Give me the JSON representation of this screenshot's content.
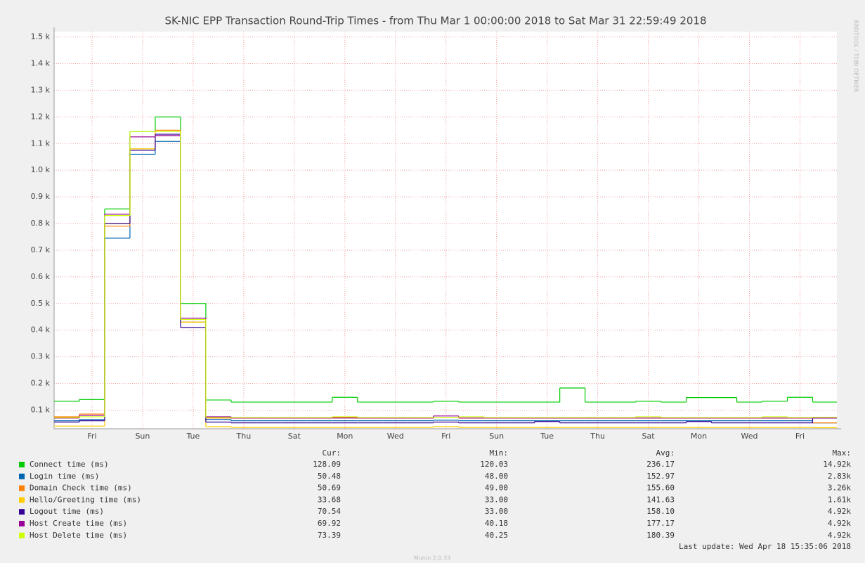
{
  "chart_data": {
    "type": "line",
    "title": "SK-NIC EPP Transaction Round-Trip Times - from Thu Mar  1 00:00:00 2018 to Sat Mar 31 22:59:49 2018",
    "side_label": "RRDTOOL / TOBI OETIKER",
    "step": true,
    "grid": true,
    "xlim": [
      0,
      30.96
    ],
    "ylim": [
      30,
      1520
    ],
    "xticks": [
      {
        "value": 1.5,
        "label": "Fri"
      },
      {
        "value": 3.5,
        "label": "Sun"
      },
      {
        "value": 5.5,
        "label": "Tue"
      },
      {
        "value": 7.5,
        "label": "Thu"
      },
      {
        "value": 9.5,
        "label": "Sat"
      },
      {
        "value": 11.5,
        "label": "Mon"
      },
      {
        "value": 13.5,
        "label": "Wed"
      },
      {
        "value": 15.5,
        "label": "Fri"
      },
      {
        "value": 17.5,
        "label": "Sun"
      },
      {
        "value": 19.5,
        "label": "Tue"
      },
      {
        "value": 21.5,
        "label": "Thu"
      },
      {
        "value": 23.5,
        "label": "Sat"
      },
      {
        "value": 25.5,
        "label": "Mon"
      },
      {
        "value": 27.5,
        "label": "Wed"
      },
      {
        "value": 29.5,
        "label": "Fri"
      }
    ],
    "yticks": [
      {
        "value": 100,
        "label": "0.1 k"
      },
      {
        "value": 200,
        "label": "0.2 k"
      },
      {
        "value": 300,
        "label": "0.3 k"
      },
      {
        "value": 400,
        "label": "0.4 k"
      },
      {
        "value": 500,
        "label": "0.5 k"
      },
      {
        "value": 600,
        "label": "0.6 k"
      },
      {
        "value": 700,
        "label": "0.7 k"
      },
      {
        "value": 800,
        "label": "0.8 k"
      },
      {
        "value": 900,
        "label": "0.9 k"
      },
      {
        "value": 1000,
        "label": "1.0 k"
      },
      {
        "value": 1100,
        "label": "1.1 k"
      },
      {
        "value": 1200,
        "label": "1.2 k"
      },
      {
        "value": 1300,
        "label": "1.3 k"
      },
      {
        "value": 1400,
        "label": "1.4 k"
      },
      {
        "value": 1500,
        "label": "1.5 k"
      }
    ],
    "x": [
      0,
      1,
      2,
      3,
      4,
      5,
      6,
      7,
      8,
      9,
      10,
      11,
      12,
      13,
      14,
      15,
      16,
      17,
      18,
      19,
      20,
      21,
      22,
      23,
      24,
      25,
      26,
      27,
      28,
      29,
      30
    ],
    "legend_columns": [
      "Cur:",
      "Min:",
      "Avg:",
      "Max:"
    ],
    "series": [
      {
        "name": "Connect time (ms)",
        "color": "#00cc00",
        "stats": [
          "128.09",
          "120.03",
          "236.17",
          "14.92k"
        ],
        "values": [
          133,
          140,
          855,
          1145,
          1200,
          500,
          138,
          130,
          130,
          130,
          130,
          148,
          130,
          130,
          130,
          133,
          130,
          130,
          130,
          130,
          183,
          130,
          130,
          133,
          130,
          147,
          147,
          130,
          133,
          148,
          130
        ]
      },
      {
        "name": "Login time (ms)",
        "color": "#0066b3",
        "stats": [
          "50.48",
          "48.00",
          "152.97",
          "2.83k"
        ],
        "values": [
          60,
          65,
          745,
          1060,
          1108,
          430,
          65,
          60,
          60,
          60,
          60,
          60,
          60,
          60,
          60,
          62,
          60,
          60,
          60,
          60,
          60,
          60,
          60,
          60,
          60,
          60,
          60,
          60,
          60,
          60,
          52
        ]
      },
      {
        "name": "Domain Check time (ms)",
        "color": "#ff8000",
        "stats": [
          "50.69",
          "49.00",
          "155.60",
          "3.26k"
        ],
        "values": [
          75,
          85,
          790,
          1080,
          1150,
          430,
          70,
          70,
          70,
          70,
          70,
          72,
          70,
          70,
          70,
          72,
          70,
          70,
          70,
          70,
          70,
          70,
          70,
          70,
          70,
          70,
          70,
          70,
          70,
          70,
          52
        ]
      },
      {
        "name": "Hello/Greeting time (ms)",
        "color": "#ffcc00",
        "stats": [
          "33.68",
          "33.00",
          "141.63",
          "1.61k"
        ],
        "values": [
          40,
          40,
          800,
          1080,
          1145,
          430,
          38,
          35,
          35,
          35,
          35,
          35,
          35,
          35,
          35,
          38,
          35,
          35,
          35,
          35,
          35,
          35,
          35,
          35,
          35,
          35,
          35,
          35,
          35,
          35,
          34
        ]
      },
      {
        "name": "Logout time (ms)",
        "color": "#330099",
        "stats": [
          "70.54",
          "33.00",
          "158.10",
          "4.92k"
        ],
        "values": [
          55,
          60,
          800,
          1075,
          1135,
          410,
          55,
          52,
          52,
          52,
          52,
          52,
          52,
          52,
          52,
          55,
          52,
          52,
          52,
          57,
          52,
          52,
          52,
          52,
          52,
          57,
          52,
          52,
          52,
          52,
          70
        ]
      },
      {
        "name": "Host Create time (ms)",
        "color": "#990099",
        "stats": [
          "69.92",
          "40.18",
          "177.17",
          "4.92k"
        ],
        "values": [
          70,
          80,
          835,
          1125,
          1130,
          445,
          75,
          70,
          70,
          70,
          70,
          70,
          70,
          70,
          70,
          78,
          70,
          70,
          70,
          70,
          70,
          70,
          70,
          70,
          70,
          70,
          70,
          70,
          70,
          70,
          70
        ]
      },
      {
        "name": "Host Delete time (ms)",
        "color": "#ccff00",
        "stats": [
          "73.39",
          "40.25",
          "180.39",
          "4.92k"
        ],
        "values": [
          72,
          75,
          830,
          1145,
          1145,
          440,
          72,
          72,
          72,
          72,
          72,
          75,
          72,
          72,
          72,
          72,
          75,
          72,
          72,
          72,
          72,
          72,
          72,
          75,
          72,
          72,
          72,
          72,
          75,
          72,
          73
        ]
      }
    ],
    "last_update": "Last update: Wed Apr 18 15:35:06 2018",
    "footer": "Munin 2.0.33"
  }
}
